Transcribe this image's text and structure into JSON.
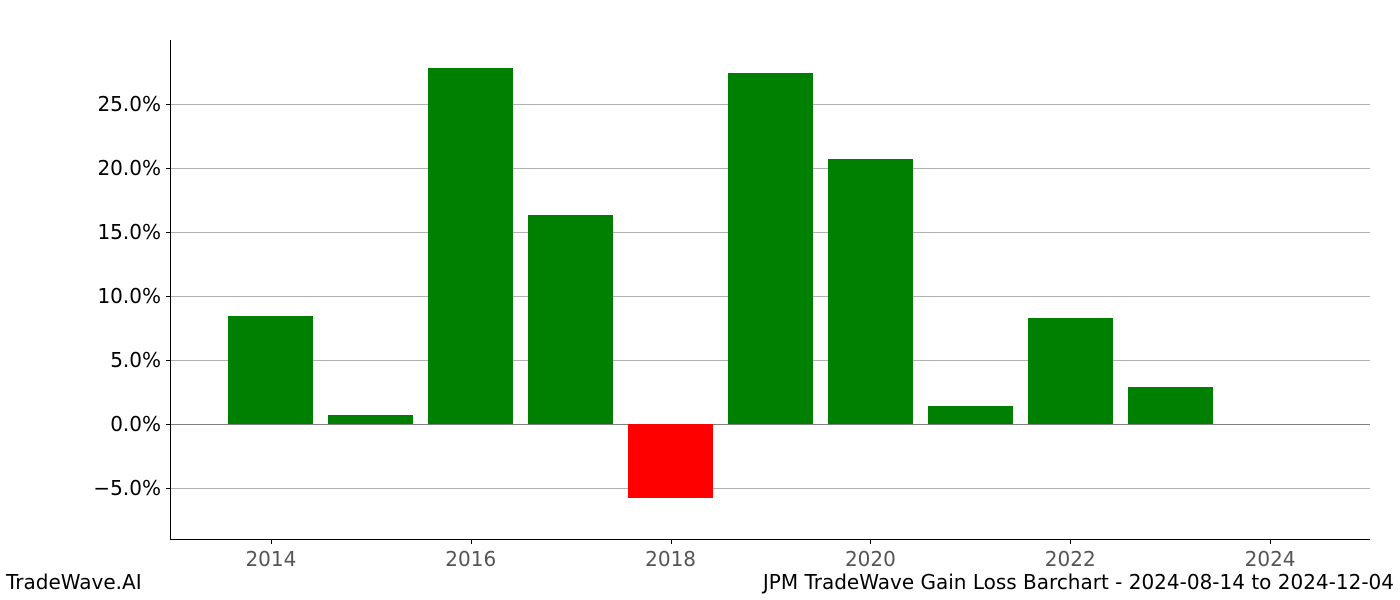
{
  "chart": {
    "type": "bar",
    "background_color": "#ffffff",
    "grid_color": "#b0b0b0",
    "axis_color": "#000000",
    "positive_color": "#008000",
    "negative_color": "#ff0000",
    "ytick_fontsize": 20,
    "xtick_fontsize": 20,
    "xtick_color": "#555555",
    "ylim_min": -9,
    "ylim_max": 30,
    "ytick_step": 5,
    "yticks": [
      {
        "value": -5,
        "label": "−5.0%"
      },
      {
        "value": 0,
        "label": "0.0%"
      },
      {
        "value": 5,
        "label": "5.0%"
      },
      {
        "value": 10,
        "label": "10.0%"
      },
      {
        "value": 15,
        "label": "15.0%"
      },
      {
        "value": 20,
        "label": "20.0%"
      },
      {
        "value": 25,
        "label": "25.0%"
      }
    ],
    "xlim_min": 2013,
    "xlim_max": 2025,
    "xticks": [
      {
        "value": 2014,
        "label": "2014"
      },
      {
        "value": 2016,
        "label": "2016"
      },
      {
        "value": 2018,
        "label": "2018"
      },
      {
        "value": 2020,
        "label": "2020"
      },
      {
        "value": 2022,
        "label": "2022"
      },
      {
        "value": 2024,
        "label": "2024"
      }
    ],
    "bar_width": 0.85,
    "bars": [
      {
        "year": 2014,
        "value": 8.4
      },
      {
        "year": 2015,
        "value": 0.7
      },
      {
        "year": 2016,
        "value": 27.8
      },
      {
        "year": 2017,
        "value": 16.3
      },
      {
        "year": 2018,
        "value": -5.8
      },
      {
        "year": 2019,
        "value": 27.4
      },
      {
        "year": 2020,
        "value": 20.7
      },
      {
        "year": 2021,
        "value": 1.4
      },
      {
        "year": 2022,
        "value": 8.3
      },
      {
        "year": 2023,
        "value": 2.9
      }
    ]
  },
  "footer": {
    "left": "TradeWave.AI",
    "right": "JPM TradeWave Gain Loss Barchart - 2024-08-14 to 2024-12-04"
  }
}
